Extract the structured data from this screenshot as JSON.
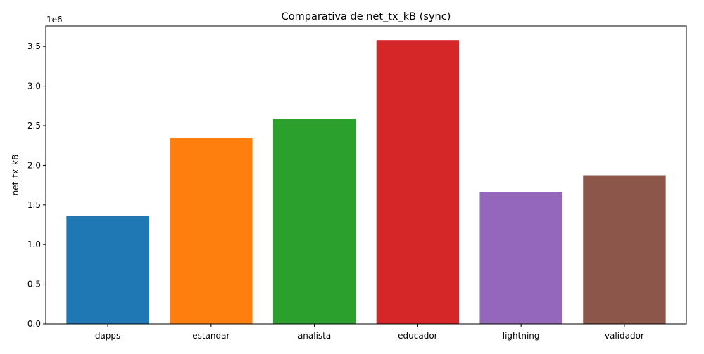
{
  "chart_data": {
    "type": "bar",
    "title": "Comparativa de net_tx_kB (sync)",
    "xlabel": "",
    "ylabel": "net_tx_kB",
    "offset_label": "1e6",
    "categories": [
      "dapps",
      "estandar",
      "analista",
      "educador",
      "lightning",
      "validador"
    ],
    "values": [
      1360000,
      2345000,
      2585000,
      3580000,
      1665000,
      1875000
    ],
    "colors": [
      "#1f77b4",
      "#ff7f0e",
      "#2ca02c",
      "#d62728",
      "#9467bd",
      "#8c564b"
    ],
    "ylim": [
      0,
      3759000
    ],
    "yticks": [
      0,
      500000,
      1000000,
      1500000,
      2000000,
      2500000,
      3000000,
      3500000
    ],
    "ytick_labels": [
      "0.0",
      "0.5",
      "1.0",
      "1.5",
      "2.0",
      "2.5",
      "3.0",
      "3.5"
    ],
    "grid": false,
    "legend": false
  }
}
